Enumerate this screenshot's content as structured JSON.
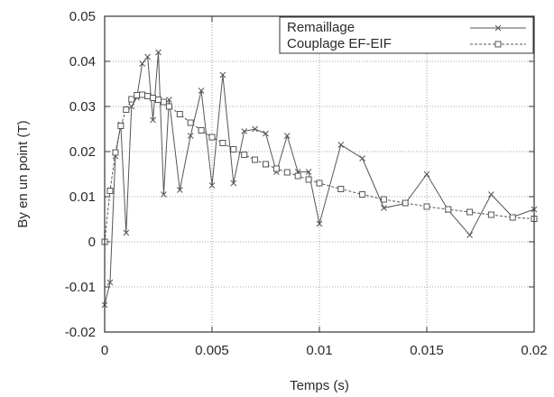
{
  "chart_data": {
    "type": "line",
    "title": "",
    "xlabel": "Temps (s)",
    "ylabel": "By en un point (T)",
    "xlim": [
      0,
      0.02
    ],
    "ylim": [
      -0.02,
      0.05
    ],
    "x_ticks": [
      0,
      0.005,
      0.01,
      0.015,
      0.02
    ],
    "x_tick_labels": [
      "0",
      "0.005",
      "0.01",
      "0.015",
      "0.02"
    ],
    "y_ticks": [
      -0.02,
      -0.01,
      0,
      0.01,
      0.02,
      0.03,
      0.04,
      0.05
    ],
    "y_tick_labels": [
      "-0.02",
      "-0.01",
      "0",
      "0.01",
      "0.02",
      "0.03",
      "0.04",
      "0.05"
    ],
    "grid": true,
    "legend_position": "top-right",
    "series": [
      {
        "name": "Remaillage",
        "marker": "x",
        "line_style": "solid",
        "x": [
          0,
          0.00025,
          0.0005,
          0.00075,
          0.001,
          0.00125,
          0.0015,
          0.00175,
          0.002,
          0.00225,
          0.0025,
          0.00275,
          0.003,
          0.0035,
          0.004,
          0.0045,
          0.005,
          0.0055,
          0.006,
          0.0065,
          0.007,
          0.0075,
          0.008,
          0.0085,
          0.009,
          0.0095,
          0.01,
          0.011,
          0.012,
          0.013,
          0.014,
          0.015,
          0.016,
          0.017,
          0.018,
          0.019,
          0.02
        ],
        "y": [
          -0.014,
          -0.009,
          0.019,
          0.026,
          0.002,
          0.03,
          0.032,
          0.0395,
          0.041,
          0.027,
          0.042,
          0.0105,
          0.0315,
          0.0115,
          0.0235,
          0.0335,
          0.0125,
          0.037,
          0.013,
          0.0245,
          0.025,
          0.024,
          0.0155,
          0.0235,
          0.0155,
          0.0155,
          0.004,
          0.0215,
          0.0185,
          0.0075,
          0.0085,
          0.015,
          0.007,
          0.0015,
          0.0105,
          0.0055,
          0.0072
        ]
      },
      {
        "name": "Couplage EF-EIF",
        "marker": "square",
        "line_style": "dashed",
        "x": [
          0,
          0.00025,
          0.0005,
          0.00075,
          0.001,
          0.00125,
          0.0015,
          0.00175,
          0.002,
          0.00225,
          0.0025,
          0.00275,
          0.003,
          0.0035,
          0.004,
          0.0045,
          0.005,
          0.0055,
          0.006,
          0.0065,
          0.007,
          0.0075,
          0.008,
          0.0085,
          0.009,
          0.0095,
          0.01,
          0.011,
          0.012,
          0.013,
          0.014,
          0.015,
          0.016,
          0.017,
          0.018,
          0.019,
          0.02
        ],
        "y": [
          0,
          0.0113,
          0.0198,
          0.0257,
          0.0293,
          0.0316,
          0.0325,
          0.0326,
          0.0323,
          0.0319,
          0.0315,
          0.031,
          0.03,
          0.0283,
          0.0264,
          0.0247,
          0.0232,
          0.0219,
          0.0205,
          0.0193,
          0.0182,
          0.0172,
          0.0162,
          0.0154,
          0.0146,
          0.0138,
          0.013,
          0.0117,
          0.0105,
          0.0094,
          0.0086,
          0.0078,
          0.0072,
          0.0066,
          0.006,
          0.0054,
          0.0051
        ]
      }
    ]
  }
}
